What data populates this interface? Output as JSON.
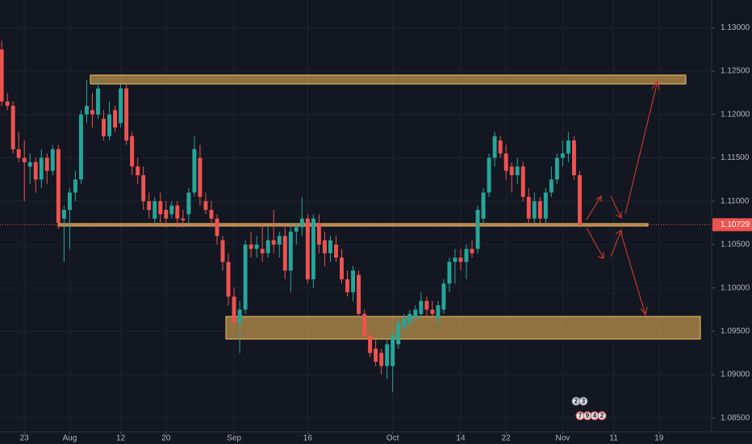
{
  "chart_data": {
    "type": "candlestick",
    "up_color": "#26a69a",
    "down_color": "#ef5350",
    "grid": true,
    "xlim": [
      -0.3,
      125
    ],
    "ylim": [
      1.0834,
      1.1332
    ],
    "yticks": [
      {
        "value": 1.13,
        "label": "1.13000"
      },
      {
        "value": 1.125,
        "label": "1.12500"
      },
      {
        "value": 1.12,
        "label": "1.12000"
      },
      {
        "value": 1.115,
        "label": "1.11500"
      },
      {
        "value": 1.11,
        "label": "1.11000"
      },
      {
        "value": 1.105,
        "label": "1.10500"
      },
      {
        "value": 1.1,
        "label": "1.10000"
      },
      {
        "value": 1.095,
        "label": "1.09500"
      },
      {
        "value": 1.09,
        "label": "1.09000"
      },
      {
        "value": 1.085,
        "label": "1.08500"
      }
    ],
    "xticks": [
      {
        "value": 4,
        "label": "23"
      },
      {
        "value": 12,
        "label": "Aug"
      },
      {
        "value": 21,
        "label": "12"
      },
      {
        "value": 29,
        "label": "20"
      },
      {
        "value": 41,
        "label": "Sep"
      },
      {
        "value": 54,
        "label": "16"
      },
      {
        "value": 69,
        "label": "Oct"
      },
      {
        "value": 81,
        "label": "14"
      },
      {
        "value": 89,
        "label": "22"
      },
      {
        "value": 99,
        "label": "Nov"
      },
      {
        "value": 108,
        "label": "11"
      },
      {
        "value": 116,
        "label": "19"
      }
    ],
    "last_price": {
      "value": 1.10729,
      "label": "1.10729"
    },
    "events": [
      [
        "2",
        "3"
      ],
      [
        "7",
        "9",
        "4",
        "2"
      ]
    ],
    "ohlc": [
      [
        1.1275,
        1.1285,
        1.121,
        1.1215
      ],
      [
        1.1215,
        1.1225,
        1.1205,
        1.121
      ],
      [
        1.121,
        1.1215,
        1.1155,
        1.116
      ],
      [
        1.116,
        1.118,
        1.1145,
        1.115
      ],
      [
        1.115,
        1.117,
        1.11,
        1.1145
      ],
      [
        1.114,
        1.1155,
        1.112,
        1.1145
      ],
      [
        1.1145,
        1.115,
        1.111,
        1.1125
      ],
      [
        1.1125,
        1.116,
        1.1115,
        1.115
      ],
      [
        1.115,
        1.1155,
        1.112,
        1.1135
      ],
      [
        1.1135,
        1.1165,
        1.113,
        1.116
      ],
      [
        1.116,
        1.1165,
        1.1068,
        1.1075
      ],
      [
        1.108,
        1.1095,
        1.103,
        1.109
      ],
      [
        1.109,
        1.1115,
        1.1045,
        1.111
      ],
      [
        1.111,
        1.1135,
        1.11,
        1.1125
      ],
      [
        1.1125,
        1.1205,
        1.112,
        1.12
      ],
      [
        1.12,
        1.124,
        1.119,
        1.121
      ],
      [
        1.1205,
        1.1225,
        1.1185,
        1.12
      ],
      [
        1.12,
        1.124,
        1.1195,
        1.123
      ],
      [
        1.1195,
        1.1205,
        1.117,
        1.1175
      ],
      [
        1.1175,
        1.1215,
        1.117,
        1.12
      ],
      [
        1.1205,
        1.121,
        1.118,
        1.1185
      ],
      [
        1.119,
        1.1235,
        1.1185,
        1.123
      ],
      [
        1.123,
        1.1235,
        1.1165,
        1.117
      ],
      [
        1.1175,
        1.118,
        1.113,
        1.114
      ],
      [
        1.114,
        1.115,
        1.112,
        1.113
      ],
      [
        1.113,
        1.114,
        1.109,
        1.11
      ],
      [
        1.11,
        1.111,
        1.108,
        1.109
      ],
      [
        1.108,
        1.1105,
        1.1075,
        1.11
      ],
      [
        1.11,
        1.111,
        1.1075,
        1.1085
      ],
      [
        1.109,
        1.11,
        1.107,
        1.108
      ],
      [
        1.1085,
        1.11,
        1.108,
        1.1095
      ],
      [
        1.1095,
        1.11,
        1.107,
        1.108
      ],
      [
        1.108,
        1.109,
        1.107,
        1.1078
      ],
      [
        1.1085,
        1.1115,
        1.1075,
        1.111
      ],
      [
        1.111,
        1.1175,
        1.1105,
        1.116
      ],
      [
        1.115,
        1.1165,
        1.1095,
        1.1105
      ],
      [
        1.11,
        1.111,
        1.1085,
        1.109
      ],
      [
        1.109,
        1.11,
        1.107,
        1.108
      ],
      [
        1.108,
        1.1085,
        1.105,
        1.106
      ],
      [
        1.1055,
        1.106,
        1.102,
        1.103
      ],
      [
        1.103,
        1.104,
        1.098,
        1.099
      ],
      [
        1.099,
        1.1,
        1.0955,
        1.096
      ],
      [
        1.096,
        1.0985,
        1.0925,
        1.0975
      ],
      [
        1.0975,
        1.1055,
        1.097,
        1.105
      ],
      [
        1.105,
        1.1065,
        1.1035,
        1.1045
      ],
      [
        1.1045,
        1.106,
        1.1035,
        1.105
      ],
      [
        1.1045,
        1.1075,
        1.103,
        1.104
      ],
      [
        1.104,
        1.107,
        1.1035,
        1.1055
      ],
      [
        1.1055,
        1.109,
        1.104,
        1.105
      ],
      [
        1.105,
        1.1065,
        1.1035,
        1.106
      ],
      [
        1.106,
        1.107,
        1.101,
        1.102
      ],
      [
        1.102,
        1.1075,
        1.0995,
        1.1065
      ],
      [
        1.1065,
        1.1075,
        1.105,
        1.107
      ],
      [
        1.107,
        1.1105,
        1.106,
        1.108
      ],
      [
        1.108,
        1.1085,
        1.1005,
        1.101
      ],
      [
        1.101,
        1.1085,
        1.1,
        1.108
      ],
      [
        1.1075,
        1.1085,
        1.104,
        1.105
      ],
      [
        1.1055,
        1.1065,
        1.1025,
        1.104
      ],
      [
        1.104,
        1.106,
        1.103,
        1.1055
      ],
      [
        1.105,
        1.106,
        1.103,
        1.1035
      ],
      [
        1.1035,
        1.1045,
        1.1005,
        1.101
      ],
      [
        1.101,
        1.102,
        1.099,
        1.0995
      ],
      [
        1.0995,
        1.1025,
        1.0985,
        1.102
      ],
      [
        1.1015,
        1.102,
        1.0965,
        1.097
      ],
      [
        1.097,
        1.0975,
        1.094,
        1.0945
      ],
      [
        1.0945,
        1.095,
        1.092,
        1.0925
      ],
      [
        1.093,
        1.094,
        1.091,
        1.0915
      ],
      [
        1.0925,
        1.093,
        1.09,
        1.091
      ],
      [
        1.091,
        1.094,
        1.0895,
        1.0935
      ],
      [
        1.091,
        1.095,
        1.088,
        1.0945
      ],
      [
        1.0935,
        1.0965,
        1.093,
        1.096
      ],
      [
        1.0955,
        1.097,
        1.095,
        1.0965
      ],
      [
        1.096,
        1.0975,
        1.0955,
        1.097
      ],
      [
        1.0965,
        1.098,
        1.096,
        1.0975
      ],
      [
        1.097,
        1.0995,
        1.0965,
        1.0985
      ],
      [
        1.0985,
        1.099,
        1.0965,
        1.0975
      ],
      [
        1.0975,
        1.0985,
        1.096,
        1.097
      ],
      [
        1.0965,
        1.0985,
        1.0955,
        1.098
      ],
      [
        1.0975,
        1.101,
        1.097,
        1.1005
      ],
      [
        1.1005,
        1.1035,
        1.0995,
        1.103
      ],
      [
        1.103,
        1.1045,
        1.1005,
        1.1035
      ],
      [
        1.1035,
        1.1045,
        1.102,
        1.103
      ],
      [
        1.103,
        1.105,
        1.101,
        1.1045
      ],
      [
        1.1045,
        1.1055,
        1.1035,
        1.104
      ],
      [
        1.1045,
        1.1095,
        1.104,
        1.109
      ],
      [
        1.108,
        1.1115,
        1.1075,
        1.111
      ],
      [
        1.111,
        1.1155,
        1.1105,
        1.115
      ],
      [
        1.115,
        1.118,
        1.114,
        1.1175
      ],
      [
        1.117,
        1.1175,
        1.115,
        1.1155
      ],
      [
        1.1155,
        1.1165,
        1.1125,
        1.1135
      ],
      [
        1.114,
        1.1145,
        1.111,
        1.113
      ],
      [
        1.113,
        1.115,
        1.112,
        1.114
      ],
      [
        1.114,
        1.1145,
        1.11,
        1.1105
      ],
      [
        1.1105,
        1.1115,
        1.1075,
        1.108
      ],
      [
        1.108,
        1.111,
        1.1075,
        1.11
      ],
      [
        1.11,
        1.1105,
        1.1075,
        1.108
      ],
      [
        1.108,
        1.1115,
        1.1075,
        1.111
      ],
      [
        1.111,
        1.114,
        1.1105,
        1.1125
      ],
      [
        1.1125,
        1.1155,
        1.112,
        1.115
      ],
      [
        1.115,
        1.117,
        1.114,
        1.1155
      ],
      [
        1.1155,
        1.118,
        1.1145,
        1.117
      ],
      [
        1.117,
        1.1175,
        1.1125,
        1.113
      ],
      [
        1.113,
        1.1135,
        1.107,
        1.10729
      ]
    ]
  }
}
